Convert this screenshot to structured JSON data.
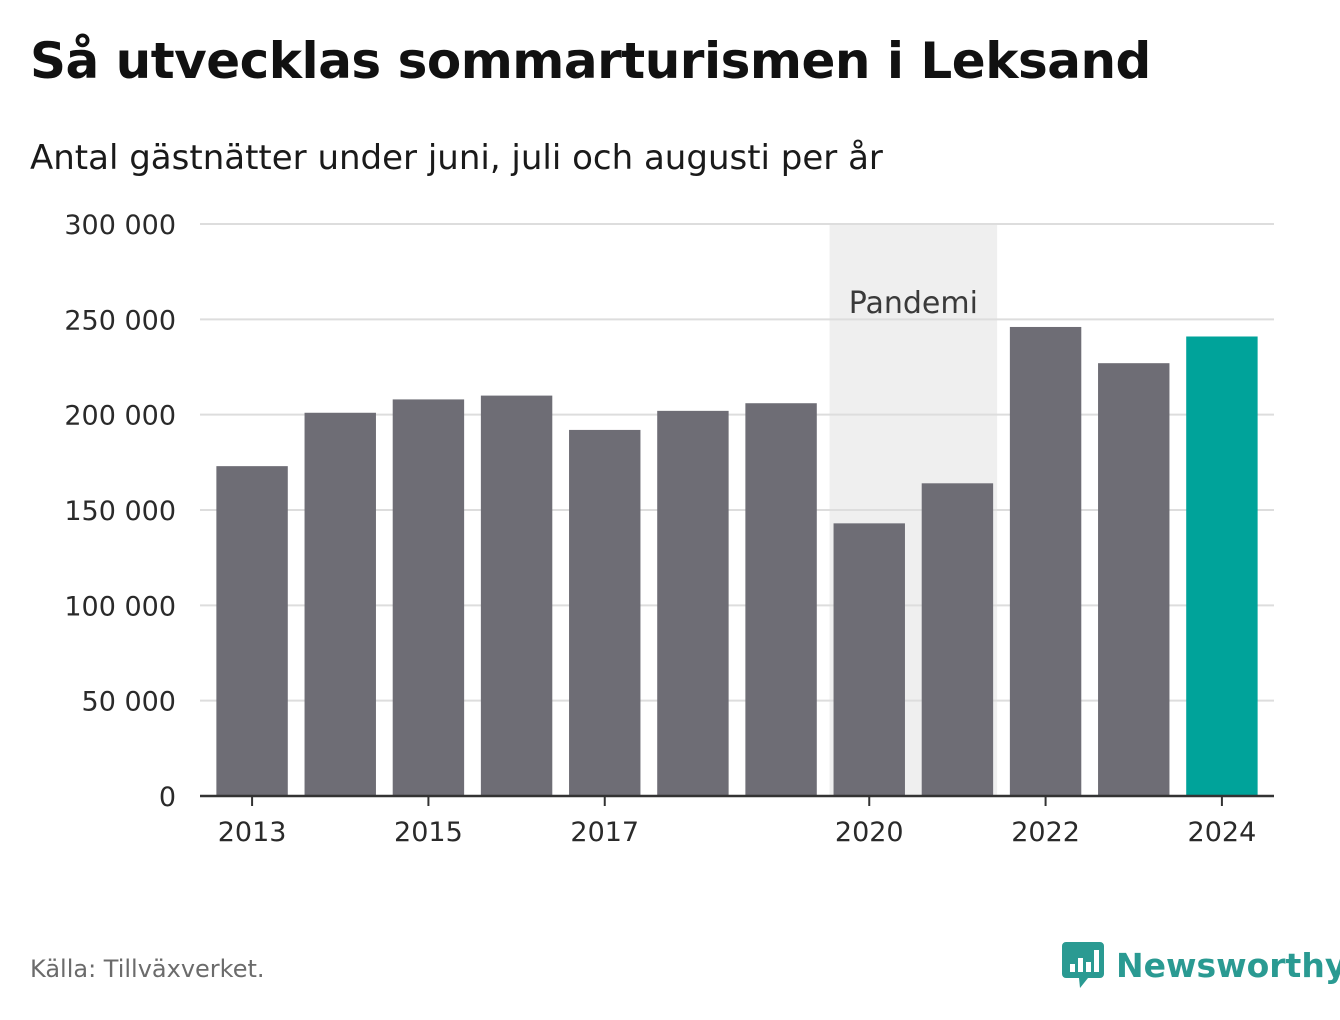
{
  "header": {
    "title": "Så utvecklas sommarturismen i Leksand",
    "subtitle": "Antal gästnätter under juni, juli och augusti per år"
  },
  "footer": {
    "source": "Källa: Tillväxverket.",
    "brand_name": "Newsworthy",
    "brand_icon": "bar-chart-speech-bubble-icon"
  },
  "colors": {
    "bar": "#6e6d75",
    "highlight": "#00a39a",
    "band": "#efefef",
    "grid": "#dddddd",
    "axis": "#333333",
    "brand": "#2a9a92"
  },
  "chart_data": {
    "type": "bar",
    "categories": [
      "2013",
      "2014",
      "2015",
      "2016",
      "2017",
      "2018",
      "2019",
      "2020",
      "2021",
      "2022",
      "2023",
      "2024"
    ],
    "x_tick_labels": [
      "2013",
      "2015",
      "2017",
      "2020",
      "2022",
      "2024"
    ],
    "values": [
      173000,
      201000,
      208000,
      210000,
      192000,
      202000,
      206000,
      143000,
      164000,
      246000,
      227000,
      241000
    ],
    "highlight_category": "2024",
    "ylim": [
      0,
      300000
    ],
    "y_ticks": [
      0,
      50000,
      100000,
      150000,
      200000,
      250000,
      300000
    ],
    "y_tick_labels": [
      "0",
      "50 000",
      "100 000",
      "150 000",
      "200 000",
      "250 000",
      "300 000"
    ],
    "annotations": [
      {
        "label": "Pandemi",
        "from": "2020",
        "to": "2021"
      }
    ],
    "grid": true,
    "legend": "none"
  }
}
